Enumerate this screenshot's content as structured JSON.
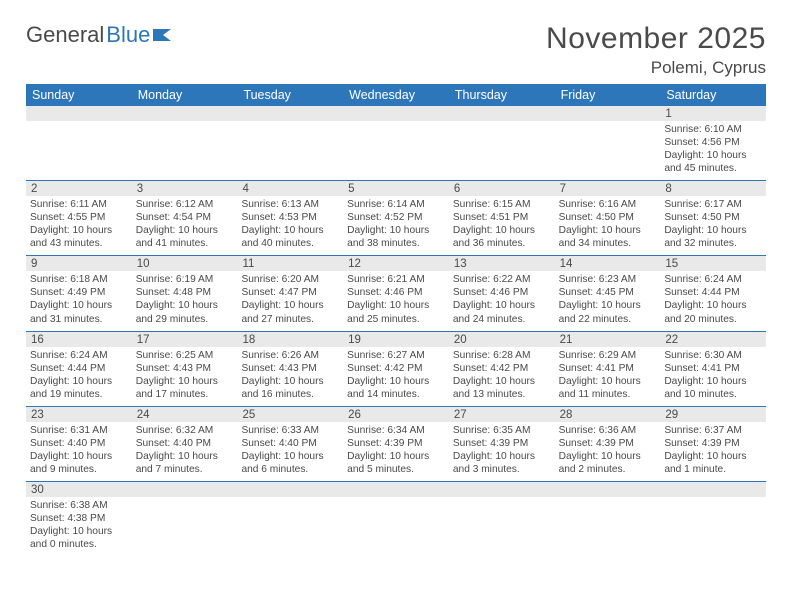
{
  "brand": {
    "part1": "General",
    "part2": "Blue"
  },
  "title": "November 2025",
  "location": "Polemi, Cyprus",
  "colors": {
    "header_bg": "#2d76ba",
    "header_text": "#ffffff",
    "daynum_bg": "#e9e9e9",
    "text": "#4a4a4a",
    "rule": "#2d76ba",
    "page_bg": "#ffffff"
  },
  "day_headers": [
    "Sunday",
    "Monday",
    "Tuesday",
    "Wednesday",
    "Thursday",
    "Friday",
    "Saturday"
  ],
  "weeks": [
    {
      "nums": [
        "",
        "",
        "",
        "",
        "",
        "",
        "1"
      ],
      "cells": [
        null,
        null,
        null,
        null,
        null,
        null,
        {
          "sunrise": "Sunrise: 6:10 AM",
          "sunset": "Sunset: 4:56 PM",
          "day1": "Daylight: 10 hours",
          "day2": "and 45 minutes."
        }
      ]
    },
    {
      "nums": [
        "2",
        "3",
        "4",
        "5",
        "6",
        "7",
        "8"
      ],
      "cells": [
        {
          "sunrise": "Sunrise: 6:11 AM",
          "sunset": "Sunset: 4:55 PM",
          "day1": "Daylight: 10 hours",
          "day2": "and 43 minutes."
        },
        {
          "sunrise": "Sunrise: 6:12 AM",
          "sunset": "Sunset: 4:54 PM",
          "day1": "Daylight: 10 hours",
          "day2": "and 41 minutes."
        },
        {
          "sunrise": "Sunrise: 6:13 AM",
          "sunset": "Sunset: 4:53 PM",
          "day1": "Daylight: 10 hours",
          "day2": "and 40 minutes."
        },
        {
          "sunrise": "Sunrise: 6:14 AM",
          "sunset": "Sunset: 4:52 PM",
          "day1": "Daylight: 10 hours",
          "day2": "and 38 minutes."
        },
        {
          "sunrise": "Sunrise: 6:15 AM",
          "sunset": "Sunset: 4:51 PM",
          "day1": "Daylight: 10 hours",
          "day2": "and 36 minutes."
        },
        {
          "sunrise": "Sunrise: 6:16 AM",
          "sunset": "Sunset: 4:50 PM",
          "day1": "Daylight: 10 hours",
          "day2": "and 34 minutes."
        },
        {
          "sunrise": "Sunrise: 6:17 AM",
          "sunset": "Sunset: 4:50 PM",
          "day1": "Daylight: 10 hours",
          "day2": "and 32 minutes."
        }
      ]
    },
    {
      "nums": [
        "9",
        "10",
        "11",
        "12",
        "13",
        "14",
        "15"
      ],
      "cells": [
        {
          "sunrise": "Sunrise: 6:18 AM",
          "sunset": "Sunset: 4:49 PM",
          "day1": "Daylight: 10 hours",
          "day2": "and 31 minutes."
        },
        {
          "sunrise": "Sunrise: 6:19 AM",
          "sunset": "Sunset: 4:48 PM",
          "day1": "Daylight: 10 hours",
          "day2": "and 29 minutes."
        },
        {
          "sunrise": "Sunrise: 6:20 AM",
          "sunset": "Sunset: 4:47 PM",
          "day1": "Daylight: 10 hours",
          "day2": "and 27 minutes."
        },
        {
          "sunrise": "Sunrise: 6:21 AM",
          "sunset": "Sunset: 4:46 PM",
          "day1": "Daylight: 10 hours",
          "day2": "and 25 minutes."
        },
        {
          "sunrise": "Sunrise: 6:22 AM",
          "sunset": "Sunset: 4:46 PM",
          "day1": "Daylight: 10 hours",
          "day2": "and 24 minutes."
        },
        {
          "sunrise": "Sunrise: 6:23 AM",
          "sunset": "Sunset: 4:45 PM",
          "day1": "Daylight: 10 hours",
          "day2": "and 22 minutes."
        },
        {
          "sunrise": "Sunrise: 6:24 AM",
          "sunset": "Sunset: 4:44 PM",
          "day1": "Daylight: 10 hours",
          "day2": "and 20 minutes."
        }
      ]
    },
    {
      "nums": [
        "16",
        "17",
        "18",
        "19",
        "20",
        "21",
        "22"
      ],
      "cells": [
        {
          "sunrise": "Sunrise: 6:24 AM",
          "sunset": "Sunset: 4:44 PM",
          "day1": "Daylight: 10 hours",
          "day2": "and 19 minutes."
        },
        {
          "sunrise": "Sunrise: 6:25 AM",
          "sunset": "Sunset: 4:43 PM",
          "day1": "Daylight: 10 hours",
          "day2": "and 17 minutes."
        },
        {
          "sunrise": "Sunrise: 6:26 AM",
          "sunset": "Sunset: 4:43 PM",
          "day1": "Daylight: 10 hours",
          "day2": "and 16 minutes."
        },
        {
          "sunrise": "Sunrise: 6:27 AM",
          "sunset": "Sunset: 4:42 PM",
          "day1": "Daylight: 10 hours",
          "day2": "and 14 minutes."
        },
        {
          "sunrise": "Sunrise: 6:28 AM",
          "sunset": "Sunset: 4:42 PM",
          "day1": "Daylight: 10 hours",
          "day2": "and 13 minutes."
        },
        {
          "sunrise": "Sunrise: 6:29 AM",
          "sunset": "Sunset: 4:41 PM",
          "day1": "Daylight: 10 hours",
          "day2": "and 11 minutes."
        },
        {
          "sunrise": "Sunrise: 6:30 AM",
          "sunset": "Sunset: 4:41 PM",
          "day1": "Daylight: 10 hours",
          "day2": "and 10 minutes."
        }
      ]
    },
    {
      "nums": [
        "23",
        "24",
        "25",
        "26",
        "27",
        "28",
        "29"
      ],
      "cells": [
        {
          "sunrise": "Sunrise: 6:31 AM",
          "sunset": "Sunset: 4:40 PM",
          "day1": "Daylight: 10 hours",
          "day2": "and 9 minutes."
        },
        {
          "sunrise": "Sunrise: 6:32 AM",
          "sunset": "Sunset: 4:40 PM",
          "day1": "Daylight: 10 hours",
          "day2": "and 7 minutes."
        },
        {
          "sunrise": "Sunrise: 6:33 AM",
          "sunset": "Sunset: 4:40 PM",
          "day1": "Daylight: 10 hours",
          "day2": "and 6 minutes."
        },
        {
          "sunrise": "Sunrise: 6:34 AM",
          "sunset": "Sunset: 4:39 PM",
          "day1": "Daylight: 10 hours",
          "day2": "and 5 minutes."
        },
        {
          "sunrise": "Sunrise: 6:35 AM",
          "sunset": "Sunset: 4:39 PM",
          "day1": "Daylight: 10 hours",
          "day2": "and 3 minutes."
        },
        {
          "sunrise": "Sunrise: 6:36 AM",
          "sunset": "Sunset: 4:39 PM",
          "day1": "Daylight: 10 hours",
          "day2": "and 2 minutes."
        },
        {
          "sunrise": "Sunrise: 6:37 AM",
          "sunset": "Sunset: 4:39 PM",
          "day1": "Daylight: 10 hours",
          "day2": "and 1 minute."
        }
      ]
    },
    {
      "nums": [
        "30",
        "",
        "",
        "",
        "",
        "",
        ""
      ],
      "cells": [
        {
          "sunrise": "Sunrise: 6:38 AM",
          "sunset": "Sunset: 4:38 PM",
          "day1": "Daylight: 10 hours",
          "day2": "and 0 minutes."
        },
        null,
        null,
        null,
        null,
        null,
        null
      ],
      "last": true
    }
  ]
}
